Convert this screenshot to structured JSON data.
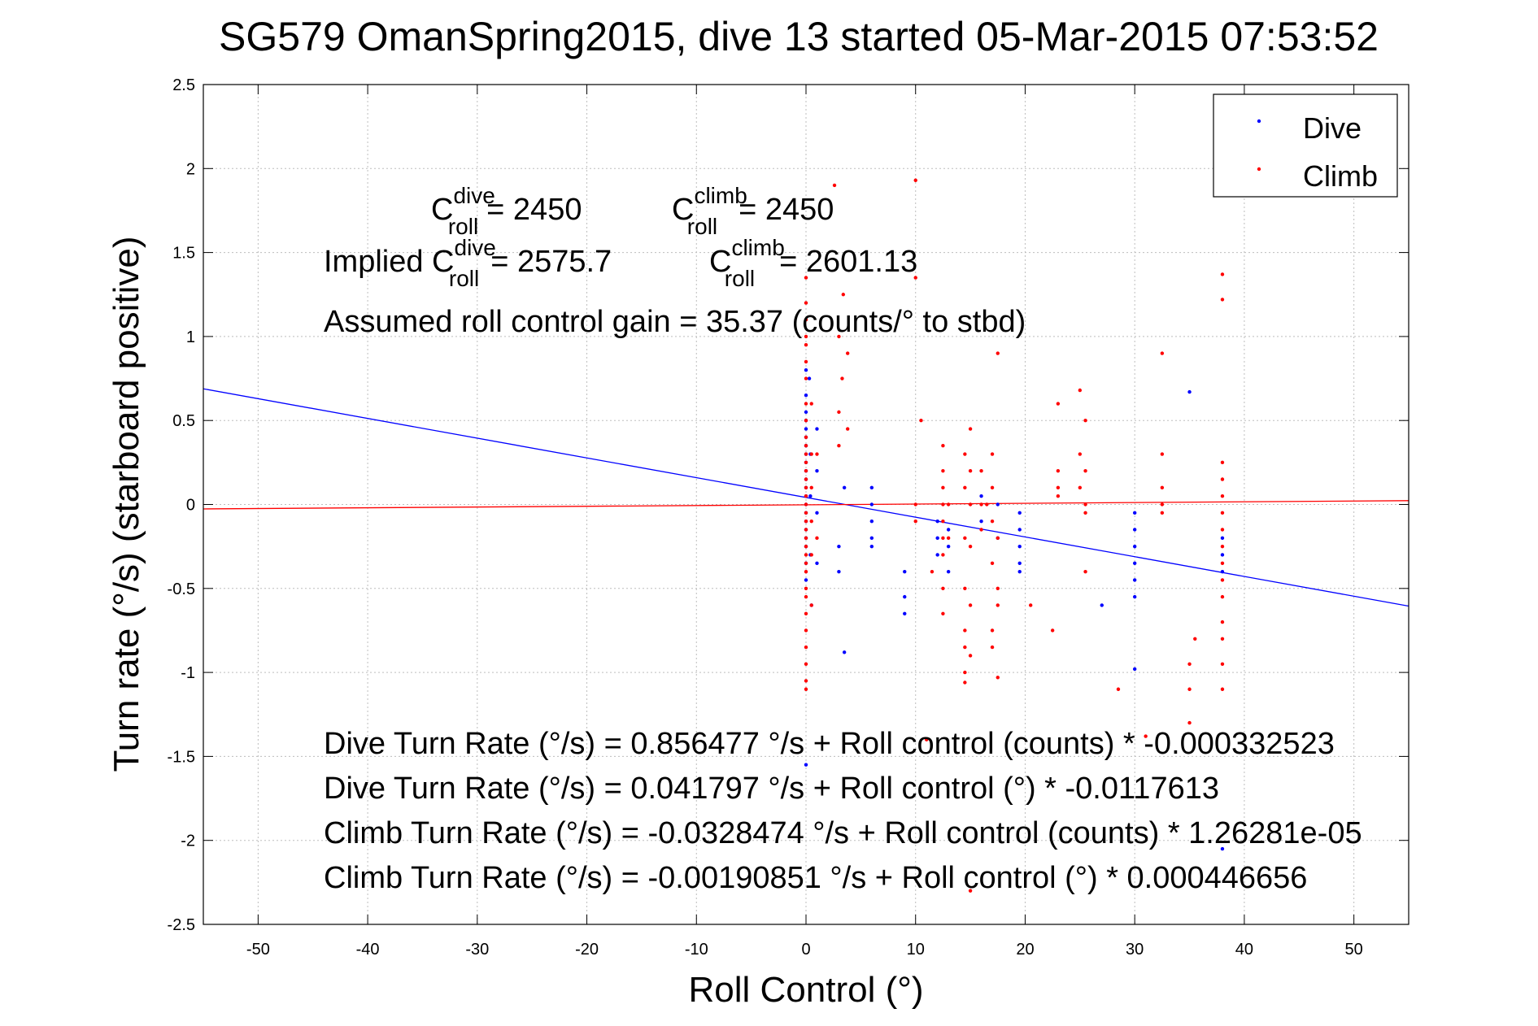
{
  "chart_data": {
    "type": "scatter",
    "title": "SG579 OmanSpring2015, dive 13 started 05-Mar-2015 07:53:52",
    "xlabel": "Roll Control (°)",
    "ylabel": "Turn rate (°/s) (starboard positive)",
    "xlim": [
      -55,
      55
    ],
    "ylim": [
      -2.5,
      2.5
    ],
    "xticks": [
      -50,
      -40,
      -30,
      -20,
      -10,
      0,
      10,
      20,
      30,
      40,
      50
    ],
    "yticks": [
      -2.5,
      -2,
      -1.5,
      -1,
      -0.5,
      0,
      0.5,
      1,
      1.5,
      2,
      2.5
    ],
    "xtick_labels": [
      "-50",
      "-40",
      "-30",
      "-20",
      "-10",
      "0",
      "10",
      "20",
      "30",
      "40",
      "50"
    ],
    "ytick_labels": [
      "-2.5",
      "-2",
      "-1.5",
      "-1",
      "-0.5",
      "0",
      "0.5",
      "1",
      "1.5",
      "2",
      "2.5"
    ],
    "grid": true,
    "legend_position": "top-right",
    "legend": [
      {
        "name": "Dive",
        "color": "#0000ff"
      },
      {
        "name": "Climb",
        "color": "#ff0000"
      }
    ],
    "series": [
      {
        "name": "Dive",
        "color": "#0000ff",
        "points": [
          [
            0,
            0.8
          ],
          [
            0,
            0.65
          ],
          [
            0,
            0.55
          ],
          [
            0,
            0.5
          ],
          [
            0,
            0.45
          ],
          [
            0,
            0.4
          ],
          [
            0,
            0.35
          ],
          [
            0,
            0.3
          ],
          [
            0,
            0.25
          ],
          [
            0,
            0.2
          ],
          [
            0,
            0.15
          ],
          [
            0,
            0.1
          ],
          [
            0,
            0.05
          ],
          [
            0,
            0.0
          ],
          [
            0,
            -0.05
          ],
          [
            0,
            -0.1
          ],
          [
            0,
            -0.15
          ],
          [
            0,
            -0.2
          ],
          [
            0,
            -0.25
          ],
          [
            0,
            -0.35
          ],
          [
            0,
            -0.45
          ],
          [
            0,
            -1.55
          ],
          [
            0.3,
            0.75
          ],
          [
            0.4,
            0.3
          ],
          [
            0.4,
            0.05
          ],
          [
            0.4,
            -0.3
          ],
          [
            0.5,
            -0.6
          ],
          [
            1,
            0.45
          ],
          [
            1,
            0.2
          ],
          [
            1,
            -0.05
          ],
          [
            1,
            -0.35
          ],
          [
            3,
            -0.25
          ],
          [
            3,
            -0.4
          ],
          [
            3.5,
            0.1
          ],
          [
            3.5,
            -0.88
          ],
          [
            6,
            0.1
          ],
          [
            6,
            0.0
          ],
          [
            6,
            -0.1
          ],
          [
            6,
            -0.2
          ],
          [
            6,
            -0.25
          ],
          [
            9,
            -0.4
          ],
          [
            9,
            -0.55
          ],
          [
            9,
            -0.65
          ],
          [
            12,
            -0.1
          ],
          [
            12,
            -0.2
          ],
          [
            12,
            -0.3
          ],
          [
            13,
            -0.15
          ],
          [
            13,
            -0.25
          ],
          [
            13,
            -0.4
          ],
          [
            16,
            0.05
          ],
          [
            16,
            -0.1
          ],
          [
            17.5,
            0.0
          ],
          [
            17.5,
            -0.2
          ],
          [
            19.5,
            -0.05
          ],
          [
            19.5,
            -0.15
          ],
          [
            19.5,
            -0.25
          ],
          [
            19.5,
            -0.35
          ],
          [
            19.5,
            -0.4
          ],
          [
            27,
            -0.6
          ],
          [
            30,
            -0.05
          ],
          [
            30,
            -0.15
          ],
          [
            30,
            -0.25
          ],
          [
            30,
            -0.35
          ],
          [
            30,
            -0.45
          ],
          [
            30,
            -0.55
          ],
          [
            30,
            -0.98
          ],
          [
            35,
            0.67
          ],
          [
            38,
            -0.2
          ],
          [
            38,
            -0.3
          ],
          [
            38,
            -0.4
          ],
          [
            38,
            -2.05
          ]
        ]
      },
      {
        "name": "Climb",
        "color": "#ff0000",
        "points": [
          [
            0,
            1.35
          ],
          [
            0,
            1.2
          ],
          [
            0,
            1.1
          ],
          [
            0,
            1.0
          ],
          [
            0,
            0.95
          ],
          [
            0,
            0.85
          ],
          [
            0,
            0.75
          ],
          [
            0,
            0.6
          ],
          [
            0,
            0.5
          ],
          [
            0,
            0.4
          ],
          [
            0,
            0.35
          ],
          [
            0,
            0.3
          ],
          [
            0,
            0.25
          ],
          [
            0,
            0.2
          ],
          [
            0,
            0.15
          ],
          [
            0,
            0.1
          ],
          [
            0,
            0.05
          ],
          [
            0,
            0.0
          ],
          [
            0,
            -0.05
          ],
          [
            0,
            -0.1
          ],
          [
            0,
            -0.15
          ],
          [
            0,
            -0.2
          ],
          [
            0,
            -0.25
          ],
          [
            0,
            -0.3
          ],
          [
            0,
            -0.35
          ],
          [
            0,
            -0.4
          ],
          [
            0,
            -0.5
          ],
          [
            0,
            -0.55
          ],
          [
            0,
            -0.65
          ],
          [
            0,
            -0.75
          ],
          [
            0,
            -0.85
          ],
          [
            0,
            -0.95
          ],
          [
            0,
            -1.05
          ],
          [
            0,
            -1.1
          ],
          [
            0.5,
            0.6
          ],
          [
            0.5,
            0.3
          ],
          [
            0.5,
            0.1
          ],
          [
            0.5,
            -0.1
          ],
          [
            0.5,
            -0.3
          ],
          [
            0.5,
            -0.6
          ],
          [
            1,
            0.3
          ],
          [
            1,
            -0.2
          ],
          [
            2.6,
            1.9
          ],
          [
            3,
            1.0
          ],
          [
            3,
            0.55
          ],
          [
            3,
            0.35
          ],
          [
            3.3,
            0.75
          ],
          [
            3.4,
            1.25
          ],
          [
            3.8,
            0.45
          ],
          [
            3.8,
            0.9
          ],
          [
            10,
            1.93
          ],
          [
            10,
            1.35
          ],
          [
            10,
            0.0
          ],
          [
            10,
            -0.1
          ],
          [
            11,
            -1.4
          ],
          [
            10.5,
            0.5
          ],
          [
            11.5,
            -0.4
          ],
          [
            12.5,
            0.35
          ],
          [
            12.5,
            0.2
          ],
          [
            12.5,
            0.1
          ],
          [
            12.5,
            0.0
          ],
          [
            12.5,
            -0.1
          ],
          [
            12.5,
            -0.2
          ],
          [
            12.5,
            -0.3
          ],
          [
            12.5,
            -0.5
          ],
          [
            12.5,
            -0.65
          ],
          [
            13,
            0.0
          ],
          [
            13,
            -0.2
          ],
          [
            14.5,
            0.3
          ],
          [
            14.5,
            0.1
          ],
          [
            14.5,
            -0.2
          ],
          [
            14.5,
            -0.5
          ],
          [
            14.5,
            -0.75
          ],
          [
            14.5,
            -0.85
          ],
          [
            14.5,
            -1.0
          ],
          [
            14.5,
            -1.06
          ],
          [
            15,
            0.45
          ],
          [
            15,
            0.2
          ],
          [
            15,
            0.0
          ],
          [
            15,
            -0.25
          ],
          [
            15,
            -0.6
          ],
          [
            15,
            -0.9
          ],
          [
            15,
            -2.3
          ],
          [
            16,
            0.2
          ],
          [
            16,
            0.0
          ],
          [
            16,
            -0.15
          ],
          [
            16.5,
            0.0
          ],
          [
            17,
            0.3
          ],
          [
            17,
            0.1
          ],
          [
            17,
            -0.1
          ],
          [
            17,
            -0.35
          ],
          [
            17,
            -0.75
          ],
          [
            17,
            -0.85
          ],
          [
            17.5,
            0.9
          ],
          [
            17.5,
            -0.2
          ],
          [
            17.5,
            -0.5
          ],
          [
            17.5,
            -0.6
          ],
          [
            17.5,
            -1.03
          ],
          [
            20.5,
            -0.6
          ],
          [
            23,
            0.6
          ],
          [
            23,
            0.2
          ],
          [
            23,
            0.1
          ],
          [
            23,
            0.05
          ],
          [
            22.5,
            -0.75
          ],
          [
            25,
            0.68
          ],
          [
            25,
            0.3
          ],
          [
            25,
            0.1
          ],
          [
            25.5,
            0.5
          ],
          [
            25.5,
            0.2
          ],
          [
            25.5,
            -0.05
          ],
          [
            25.5,
            -0.4
          ],
          [
            25.5,
            0.0
          ],
          [
            28.5,
            -1.1
          ],
          [
            31,
            -1.38
          ],
          [
            32.5,
            0.9
          ],
          [
            32.5,
            0.3
          ],
          [
            32.5,
            0.1
          ],
          [
            32.5,
            0.0
          ],
          [
            32.5,
            -0.05
          ],
          [
            35,
            -0.95
          ],
          [
            35,
            -1.1
          ],
          [
            35,
            -1.3
          ],
          [
            35.5,
            -0.8
          ],
          [
            38,
            1.37
          ],
          [
            38,
            1.22
          ],
          [
            38,
            0.25
          ],
          [
            38,
            0.15
          ],
          [
            38,
            0.05
          ],
          [
            38,
            -0.05
          ],
          [
            38,
            -0.15
          ],
          [
            38,
            -0.25
          ],
          [
            38,
            -0.35
          ],
          [
            38,
            -0.45
          ],
          [
            38,
            -0.55
          ],
          [
            38,
            -0.7
          ],
          [
            38,
            -0.8
          ],
          [
            38,
            -0.95
          ],
          [
            38,
            -1.1
          ]
        ]
      }
    ],
    "fit_lines": [
      {
        "name": "Dive fit",
        "color": "#0000ff",
        "intercept": 0.041797,
        "slope": -0.0117613
      },
      {
        "name": "Climb fit",
        "color": "#ff0000",
        "intercept": -0.00190851,
        "slope": 0.000446656
      }
    ],
    "annotations": {
      "c_roll_dive": {
        "base": "C",
        "sup": "dive",
        "sub": "roll",
        "value": "= 2450"
      },
      "c_roll_climb": {
        "base": "C",
        "sup": "climb",
        "sub": "roll",
        "value": "= 2450"
      },
      "implied_prefix": "Implied C",
      "implied_dive": {
        "sup": "dive",
        "sub": "roll",
        "value": "= 2575.7"
      },
      "implied_climb": {
        "base": "C",
        "sup": "climb",
        "sub": "roll",
        "value": "= 2601.13"
      },
      "gain_line": "Assumed roll control gain = 35.37 (counts/° to stbd)",
      "equations": [
        "Dive Turn Rate (°/s) = 0.856477 °/s + Roll control (counts) * -0.000332523",
        "Dive Turn Rate (°/s) = 0.041797 °/s + Roll control (°) * -0.0117613",
        "Climb Turn Rate (°/s) = -0.0328474 °/s + Roll control (counts) * 1.26281e-05",
        "Climb Turn Rate (°/s) = -0.00190851 °/s + Roll control (°) * 0.000446656"
      ]
    }
  }
}
